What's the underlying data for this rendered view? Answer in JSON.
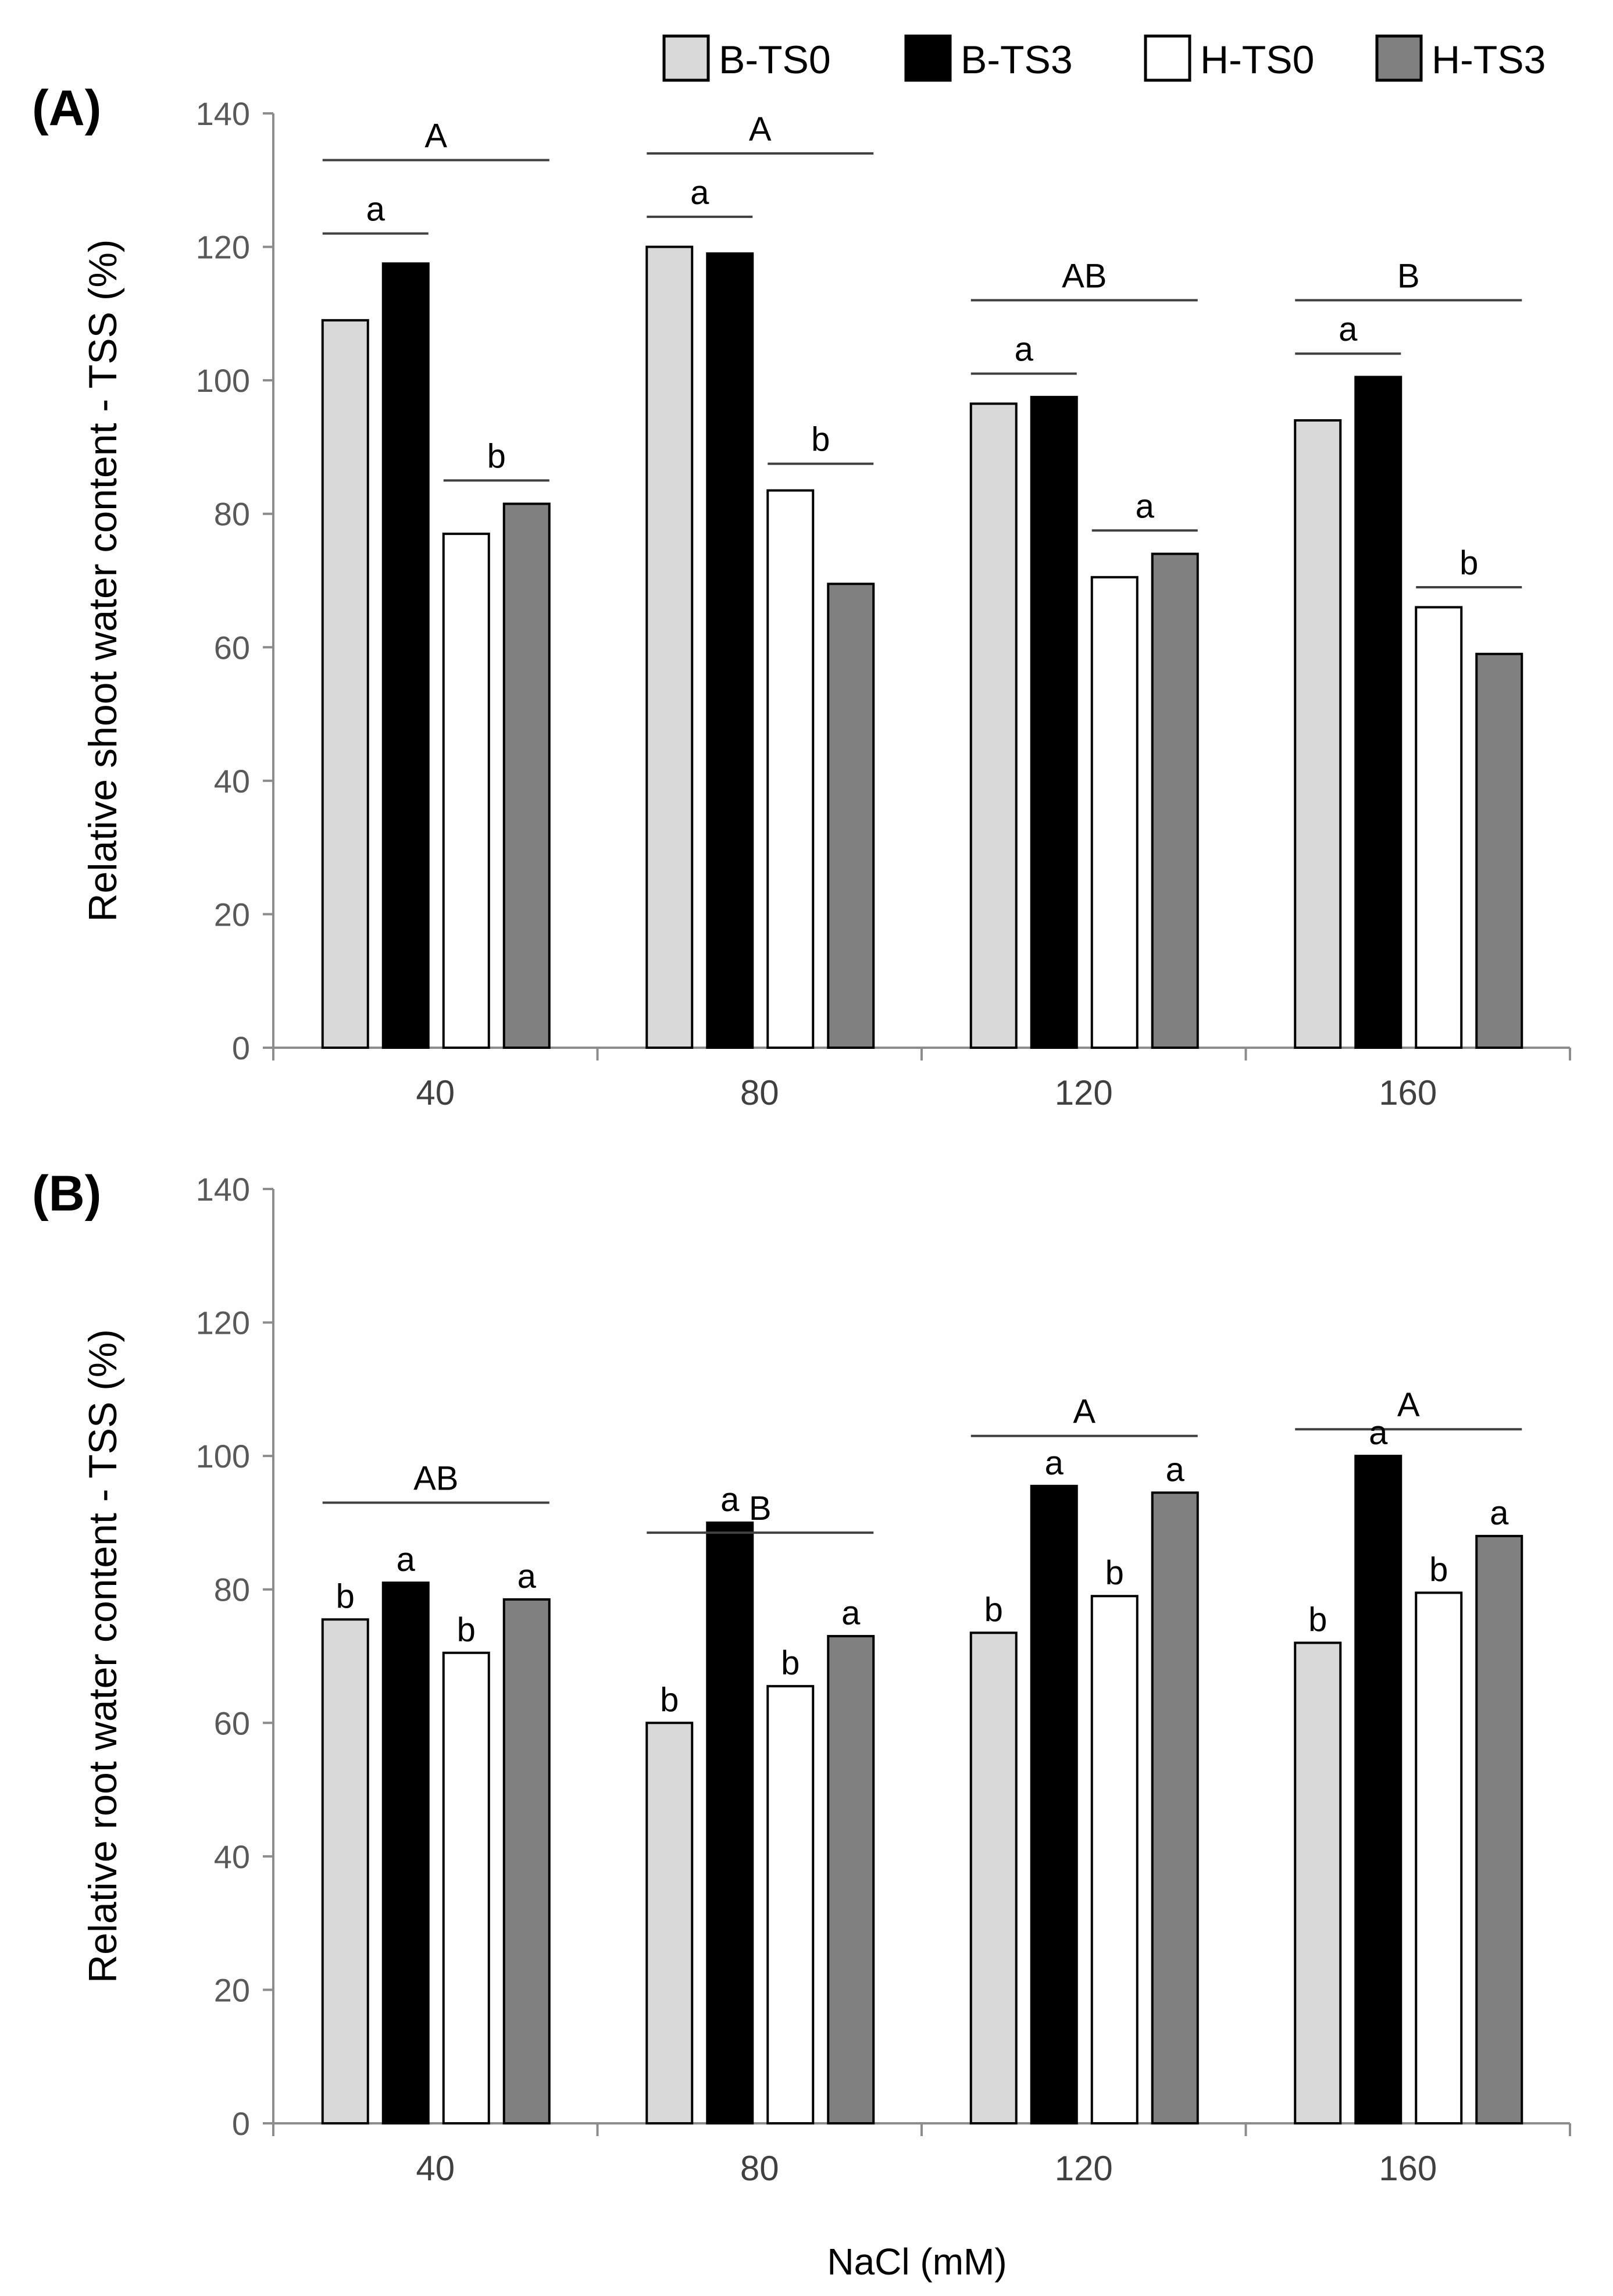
{
  "legend": [
    {
      "label": "B-TS0",
      "color": "#d9d9d9"
    },
    {
      "label": "B-TS3",
      "color": "#000000"
    },
    {
      "label": "H-TS0",
      "color": "#ffffff"
    },
    {
      "label": "H-TS3",
      "color": "#808080"
    }
  ],
  "xlabel": "NaCl (mM)",
  "chart_data": [
    {
      "panel_label": "(A)",
      "type": "bar",
      "categories": [
        "40",
        "80",
        "120",
        "160"
      ],
      "series": [
        {
          "name": "B-TS0",
          "values": [
            109,
            120,
            96.5,
            94
          ]
        },
        {
          "name": "B-TS3",
          "values": [
            117.5,
            119,
            97.5,
            100.5
          ]
        },
        {
          "name": "H-TS0",
          "values": [
            77,
            83.5,
            70.5,
            66
          ]
        },
        {
          "name": "H-TS3",
          "values": [
            81.5,
            69.5,
            74,
            59
          ]
        }
      ],
      "ylabel": "Relative shoot water content - TSS (%)",
      "xlabel": "",
      "ylim": [
        0,
        140
      ],
      "yticks": [
        0,
        20,
        40,
        60,
        80,
        100,
        120,
        140
      ],
      "group_letters": [
        {
          "category": "40",
          "text": "A",
          "y": 133
        },
        {
          "category": "80",
          "text": "A",
          "y": 134
        },
        {
          "category": "120",
          "text": "AB",
          "y": 112
        },
        {
          "category": "160",
          "text": "B",
          "y": 112
        }
      ],
      "pair_letters": [
        {
          "category": "40",
          "pair": "B",
          "text": "a",
          "y": 122
        },
        {
          "category": "40",
          "pair": "H",
          "text": "b",
          "y": 85
        },
        {
          "category": "80",
          "pair": "B",
          "text": "a",
          "y": 124.5
        },
        {
          "category": "80",
          "pair": "H",
          "text": "b",
          "y": 87.5
        },
        {
          "category": "120",
          "pair": "B",
          "text": "a",
          "y": 101
        },
        {
          "category": "120",
          "pair": "H",
          "text": "a",
          "y": 77.5
        },
        {
          "category": "160",
          "pair": "B",
          "text": "a",
          "y": 104
        },
        {
          "category": "160",
          "pair": "H",
          "text": "b",
          "y": 69
        }
      ]
    },
    {
      "panel_label": "(B)",
      "type": "bar",
      "categories": [
        "40",
        "80",
        "120",
        "160"
      ],
      "series": [
        {
          "name": "B-TS0",
          "values": [
            75.5,
            60,
            73.5,
            72
          ]
        },
        {
          "name": "B-TS3",
          "values": [
            81,
            90,
            95.5,
            100
          ]
        },
        {
          "name": "H-TS0",
          "values": [
            70.5,
            65.5,
            79,
            79.5
          ]
        },
        {
          "name": "H-TS3",
          "values": [
            78.5,
            73,
            94.5,
            88
          ]
        }
      ],
      "bar_letters": [
        [
          "b",
          "b",
          "b",
          "b"
        ],
        [
          "a",
          "a",
          "a",
          "a"
        ],
        [
          "b",
          "b",
          "b",
          "b"
        ],
        [
          "a",
          "a",
          "a",
          "a"
        ]
      ],
      "ylabel": "Relative root water content - TSS  (%)",
      "xlabel": "NaCl (mM)",
      "ylim": [
        0,
        140
      ],
      "yticks": [
        0,
        20,
        40,
        60,
        80,
        100,
        120,
        140
      ],
      "group_letters": [
        {
          "category": "40",
          "text": "AB",
          "y": 93
        },
        {
          "category": "80",
          "text": "B",
          "y": 88.5
        },
        {
          "category": "120",
          "text": "A",
          "y": 103
        },
        {
          "category": "160",
          "text": "A",
          "y": 104
        }
      ]
    }
  ]
}
